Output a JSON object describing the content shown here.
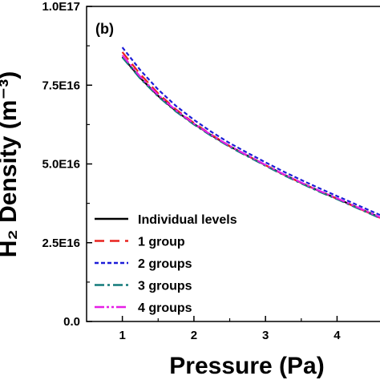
{
  "chart_data": {
    "type": "line",
    "panel_label": "(b)",
    "xlabel": "Pressure (Pa)",
    "ylabel": "H₂ Density (m⁻³)",
    "xlim": [
      0.5,
      4.6
    ],
    "ylim": [
      0,
      1e+17
    ],
    "x_ticks": [
      {
        "value": 1,
        "label": "1"
      },
      {
        "value": 2,
        "label": "2"
      },
      {
        "value": 3,
        "label": "3"
      },
      {
        "value": 4,
        "label": "4"
      }
    ],
    "y_ticks": [
      {
        "value": 0,
        "label": "0.0"
      },
      {
        "value": 2.5e+16,
        "label": "2.5E16"
      },
      {
        "value": 5e+16,
        "label": "5.0E16"
      },
      {
        "value": 7.5e+16,
        "label": "7.5E16"
      },
      {
        "value": 1e+17,
        "label": "1.0E17"
      }
    ],
    "legend_position": "lower-left",
    "series": [
      {
        "name": "Individual levels",
        "color": "#000000",
        "dash": "solid",
        "x": [
          1.0,
          1.25,
          1.5,
          1.75,
          2.0,
          2.25,
          2.5,
          2.75,
          3.0,
          3.25,
          3.5,
          3.75,
          4.0,
          4.25,
          4.5,
          4.6
        ],
        "y": [
          8.4e+16,
          7.73e+16,
          7.16e+16,
          6.68e+16,
          6.27e+16,
          5.9e+16,
          5.56e+16,
          5.26e+16,
          4.96e+16,
          4.67e+16,
          4.4e+16,
          4.14e+16,
          3.9e+16,
          3.65e+16,
          3.4e+16,
          3.3e+16
        ]
      },
      {
        "name": "1 group",
        "color": "#e8221e",
        "dash": "dash",
        "x": [
          1.0,
          1.25,
          1.5,
          1.75,
          2.0,
          2.25,
          2.5,
          2.75,
          3.0,
          3.25,
          3.5,
          3.75,
          4.0,
          4.25,
          4.5,
          4.6
        ],
        "y": [
          8.55e+16,
          7.85e+16,
          7.24e+16,
          6.73e+16,
          6.3e+16,
          5.92e+16,
          5.57e+16,
          5.26e+16,
          4.96e+16,
          4.67e+16,
          4.4e+16,
          4.14e+16,
          3.89e+16,
          3.64e+16,
          3.39e+16,
          3.29e+16
        ]
      },
      {
        "name": "2 groups",
        "color": "#1c1cd8",
        "dash": "short-dash",
        "x": [
          1.0,
          1.25,
          1.5,
          1.75,
          2.0,
          2.25,
          2.5,
          2.75,
          3.0,
          3.25,
          3.5,
          3.75,
          4.0,
          4.25,
          4.5,
          4.6
        ],
        "y": [
          8.7e+16,
          7.98e+16,
          7.36e+16,
          6.84e+16,
          6.4e+16,
          6.01e+16,
          5.66e+16,
          5.35e+16,
          5.05e+16,
          4.76e+16,
          4.49e+16,
          4.23e+16,
          3.98e+16,
          3.73e+16,
          3.48e+16,
          3.38e+16
        ]
      },
      {
        "name": "3 groups",
        "color": "#127a7a",
        "dash": "dash-dot",
        "x": [
          1.0,
          1.25,
          1.5,
          1.75,
          2.0,
          2.25,
          2.5,
          2.75,
          3.0,
          3.25,
          3.5,
          3.75,
          4.0,
          4.25,
          4.5,
          4.6
        ],
        "y": [
          8.38e+16,
          7.71e+16,
          7.14e+16,
          6.66e+16,
          6.25e+16,
          5.88e+16,
          5.54e+16,
          5.24e+16,
          4.94e+16,
          4.65e+16,
          4.38e+16,
          4.12e+16,
          3.88e+16,
          3.63e+16,
          3.38e+16,
          3.28e+16
        ]
      },
      {
        "name": "4 groups",
        "color": "#e61ee6",
        "dash": "dash-dot-dot",
        "x": [
          1.0,
          1.25,
          1.5,
          1.75,
          2.0,
          2.25,
          2.5,
          2.75,
          3.0,
          3.25,
          3.5,
          3.75,
          4.0,
          4.25,
          4.5,
          4.6
        ],
        "y": [
          8.45e+16,
          7.77e+16,
          7.19e+16,
          6.7e+16,
          6.28e+16,
          5.91e+16,
          5.57e+16,
          5.27e+16,
          4.97e+16,
          4.68e+16,
          4.41e+16,
          4.15e+16,
          3.91e+16,
          3.66e+16,
          3.41e+16,
          3.31e+16
        ]
      }
    ]
  }
}
